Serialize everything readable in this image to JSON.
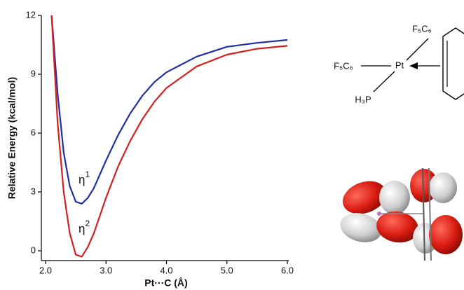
{
  "chart_data": {
    "type": "line",
    "xlabel": "Pt···C (Å)",
    "ylabel": "Relative Energy (kcal/mol)",
    "x": [
      2.1,
      2.2,
      2.3,
      2.4,
      2.5,
      2.6,
      2.7,
      2.8,
      3.0,
      3.2,
      3.4,
      3.6,
      3.8,
      4.0,
      4.5,
      5.0,
      5.5,
      6.0
    ],
    "series": [
      {
        "label": "η",
        "label_sup": "1",
        "color": "#1f2fa0",
        "values": [
          12,
          8.0,
          5.0,
          3.3,
          2.5,
          2.4,
          2.7,
          3.2,
          4.6,
          5.9,
          7.0,
          7.9,
          8.6,
          9.1,
          9.9,
          10.4,
          10.6,
          10.75
        ]
      },
      {
        "label": "η",
        "label_sup": "2",
        "color": "#d42020",
        "values": [
          12,
          6.5,
          3.0,
          0.9,
          -0.2,
          -0.3,
          0.2,
          0.9,
          2.7,
          4.3,
          5.6,
          6.7,
          7.6,
          8.3,
          9.4,
          10.0,
          10.3,
          10.45
        ]
      }
    ],
    "xlim": [
      2.0,
      6.0
    ],
    "ylim": [
      -0.5,
      12
    ],
    "xticks": [
      {
        "value": 2,
        "label": "2.0"
      },
      {
        "value": 3,
        "label": "3.0"
      },
      {
        "value": 4,
        "label": "4.0"
      },
      {
        "value": 5,
        "label": "5.0"
      },
      {
        "value": 6,
        "label": "6.0"
      }
    ],
    "yticks": [
      0,
      3,
      6,
      9,
      12
    ]
  },
  "diagram": {
    "labels": {
      "top": "F₅C₆",
      "left": "F₅C₆",
      "center": "Pt",
      "bottom": "H₃P"
    }
  }
}
